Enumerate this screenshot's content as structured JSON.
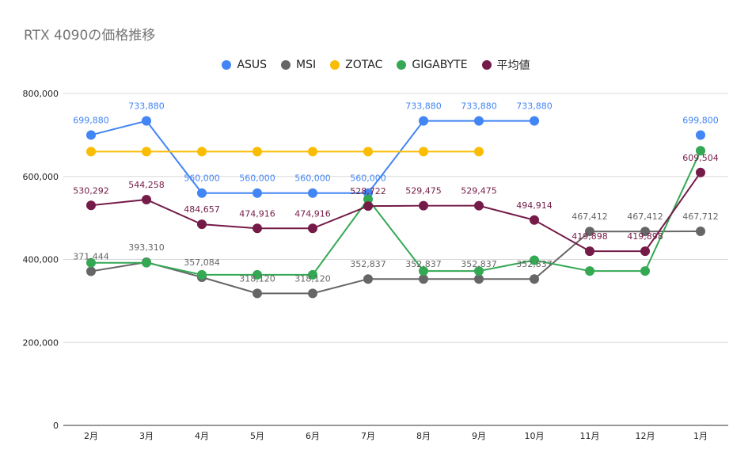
{
  "chart_data": {
    "type": "line",
    "title": "RTX 4090の価格推移",
    "categories": [
      "2月",
      "3月",
      "4月",
      "5月",
      "6月",
      "7月",
      "8月",
      "9月",
      "10月",
      "11月",
      "12月",
      "1月"
    ],
    "y_ticks": [
      "0",
      "200,000",
      "400,000",
      "600,000",
      "800,000"
    ],
    "ylim": [
      0,
      800000
    ],
    "legend_position": "top",
    "series": [
      {
        "name": "ASUS",
        "color": "#4285f4",
        "values": [
          699880,
          733880,
          560000,
          560000,
          560000,
          560000,
          733880,
          733880,
          733880,
          null,
          null,
          699800
        ],
        "labels": [
          "699,880",
          "733,880",
          "560,000",
          "560,000",
          "560,000",
          "560,000",
          "733,880",
          "733,880",
          "733,880",
          null,
          null,
          "699,800"
        ]
      },
      {
        "name": "MSI",
        "color": "#666666",
        "values": [
          371444,
          393310,
          357084,
          318120,
          318120,
          352837,
          352837,
          352837,
          352837,
          467412,
          467412,
          467712
        ],
        "labels": [
          "371,444",
          "393,310",
          "357,084",
          "318,120",
          "318,120",
          "352,837",
          "352,837",
          "352,837",
          "352,837",
          "467,412",
          "467,412",
          "467,712"
        ]
      },
      {
        "name": "ZOTAC",
        "color": "#fbbc04",
        "values": [
          659800,
          659800,
          659800,
          659800,
          659800,
          659800,
          659800,
          659800,
          null,
          null,
          null,
          null
        ],
        "labels": [
          null,
          null,
          null,
          null,
          null,
          null,
          null,
          null,
          null,
          null,
          null,
          null
        ]
      },
      {
        "name": "GIGABYTE",
        "color": "#34a853",
        "values": [
          392000,
          392000,
          363000,
          363000,
          363000,
          545000,
          372000,
          372000,
          398000,
          372000,
          372000,
          662000
        ],
        "labels": [
          null,
          null,
          null,
          null,
          null,
          null,
          null,
          null,
          null,
          null,
          null,
          null
        ]
      },
      {
        "name": "平均値",
        "color": "#741b47",
        "values": [
          530292,
          544258,
          484657,
          474916,
          474916,
          528722,
          529475,
          529475,
          494914,
          419898,
          419898,
          609504
        ],
        "labels": [
          "530,292",
          "544,258",
          "484,657",
          "474,916",
          "474,916",
          "528,722",
          "529,475",
          "529,475",
          "494,914",
          "419,898",
          "419,898",
          "609,504"
        ]
      }
    ]
  }
}
